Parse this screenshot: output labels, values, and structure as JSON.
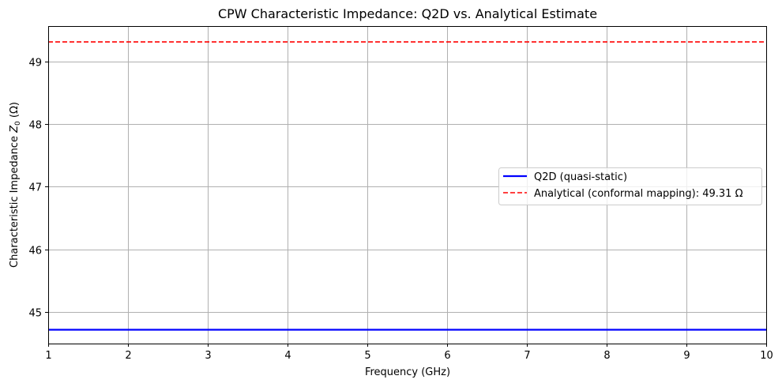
{
  "chart_data": {
    "type": "line",
    "title": "CPW Characteristic Impedance: Q2D vs. Analytical Estimate",
    "xlabel": "Frequency (GHz)",
    "ylabel_prefix": "Characteristic Impedance ",
    "ylabel_symbol": "Z",
    "ylabel_subscript": "0",
    "ylabel_suffix": " (Ω)",
    "xlim": [
      1,
      10
    ],
    "ylim": [
      44.5,
      49.55
    ],
    "xticks": [
      1,
      2,
      3,
      4,
      5,
      6,
      7,
      8,
      9,
      10
    ],
    "yticks": [
      45,
      46,
      47,
      48,
      49
    ],
    "grid": true,
    "legend_position": "center-right",
    "series": [
      {
        "name": "Q2D (quasi-static)",
        "color": "#0000ff",
        "style": "solid",
        "x": [
          1,
          2,
          3,
          4,
          5,
          6,
          7,
          8,
          9,
          10
        ],
        "values": [
          44.72,
          44.72,
          44.72,
          44.72,
          44.72,
          44.72,
          44.72,
          44.72,
          44.72,
          44.72
        ]
      },
      {
        "name": "Analytical (conformal mapping): 49.31 Ω",
        "color": "#ff0000",
        "style": "dashed",
        "x": [
          1,
          10
        ],
        "values": [
          49.31,
          49.31
        ]
      }
    ]
  }
}
